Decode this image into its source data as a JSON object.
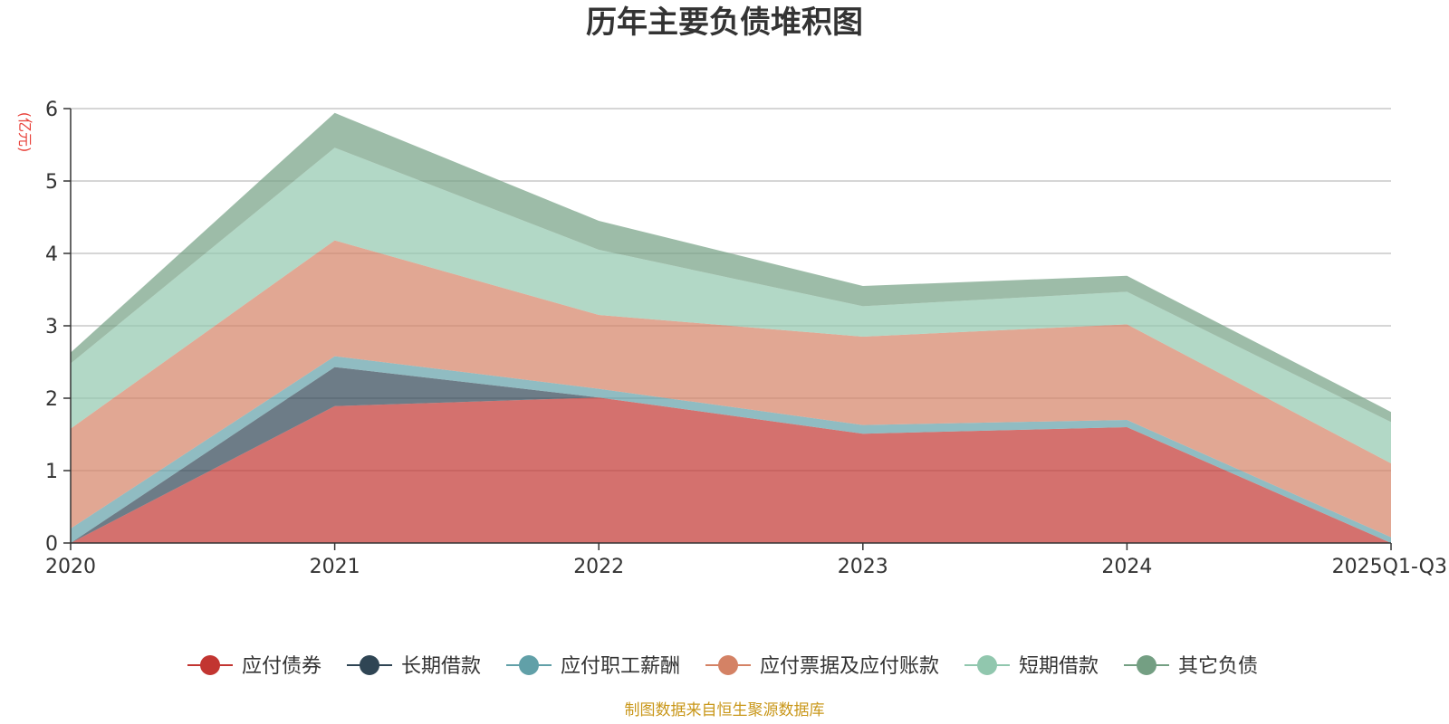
{
  "chart_data": {
    "type": "area",
    "stacked": true,
    "title": "历年主要负债堆积图",
    "unit_label": "(亿元)",
    "categories": [
      "2020",
      "2021",
      "2022",
      "2023",
      "2024",
      "2025Q1-Q3"
    ],
    "ylim": [
      0,
      6
    ],
    "yticks": [
      0,
      1,
      2,
      3,
      4,
      5,
      6
    ],
    "grid": true,
    "legend_position": "bottom",
    "series": [
      {
        "name": "应付债券",
        "color": "#c23531",
        "legend_color": "#c23531",
        "values": [
          0,
          1.89,
          2.01,
          1.51,
          1.6,
          0
        ]
      },
      {
        "name": "长期借款",
        "color": "#2f4554",
        "legend_color": "#2f4554",
        "values": [
          0,
          0.54,
          0,
          0,
          0,
          0
        ]
      },
      {
        "name": "应付职工薪酬",
        "color": "#61a0a8",
        "legend_color": "#61a0a8",
        "values": [
          0.2,
          0.15,
          0.12,
          0.12,
          0.1,
          0.08
        ]
      },
      {
        "name": "应付票据及应付账款",
        "color": "#d48265",
        "legend_color": "#d48265",
        "values": [
          1.38,
          1.6,
          1.02,
          1.22,
          1.32,
          1.02
        ]
      },
      {
        "name": "短期借款",
        "color": "#91c7ae",
        "legend_color": "#91c7ae",
        "values": [
          0.9,
          1.28,
          0.9,
          0.42,
          0.45,
          0.57
        ]
      },
      {
        "name": "其它负债",
        "color": "#749f83",
        "legend_color": "#749f83",
        "values": [
          0.15,
          0.48,
          0.4,
          0.28,
          0.22,
          0.14
        ]
      }
    ],
    "source_text": "制图数据来自恒生聚源数据库"
  }
}
